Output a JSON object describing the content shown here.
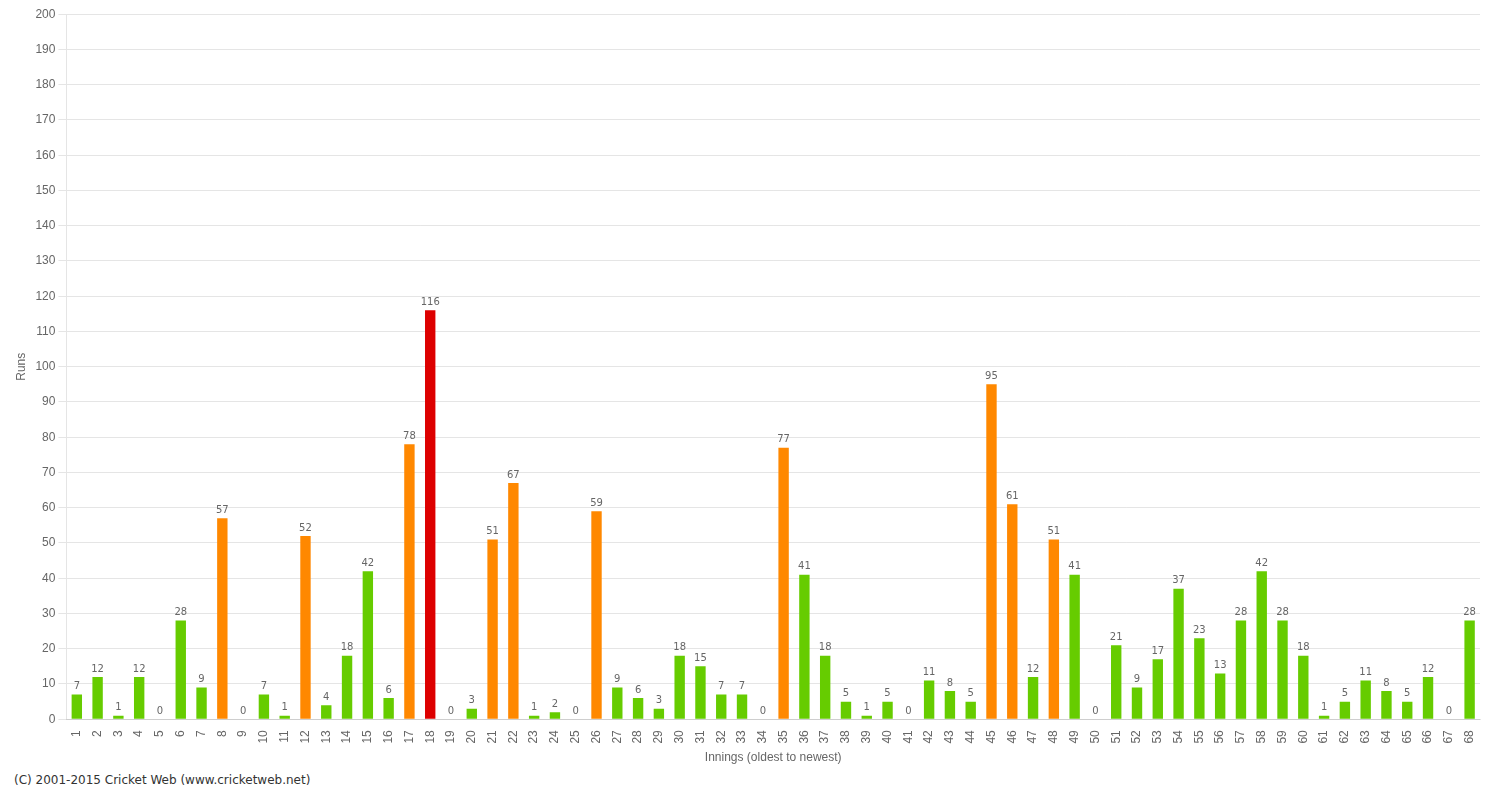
{
  "chart_data": {
    "type": "bar",
    "xlabel": "Innings (oldest to newest)",
    "ylabel": "Runs",
    "annotations": [
      "(C) 2001-2015 Cricket Web (www.cricketweb.net)"
    ],
    "categories": [
      "1",
      "2",
      "3",
      "4",
      "5",
      "6",
      "7",
      "8",
      "9",
      "10",
      "11",
      "12",
      "13",
      "14",
      "15",
      "16",
      "17",
      "18",
      "19",
      "20",
      "21",
      "22",
      "23",
      "24",
      "25",
      "26",
      "27",
      "28",
      "29",
      "30",
      "31",
      "32",
      "33",
      "34",
      "35",
      "36",
      "37",
      "38",
      "39",
      "40",
      "41",
      "42",
      "43",
      "44",
      "45",
      "46",
      "47",
      "48",
      "49",
      "50",
      "51",
      "52",
      "53",
      "54",
      "55",
      "56",
      "57",
      "58",
      "59",
      "60",
      "61",
      "62",
      "63",
      "64",
      "65",
      "66",
      "67",
      "68"
    ],
    "values": [
      7,
      12,
      1,
      12,
      0,
      28,
      9,
      57,
      0,
      7,
      1,
      52,
      4,
      18,
      42,
      6,
      78,
      116,
      0,
      3,
      51,
      67,
      1,
      2,
      0,
      59,
      9,
      6,
      3,
      18,
      15,
      7,
      7,
      0,
      77,
      41,
      18,
      5,
      1,
      5,
      0,
      11,
      8,
      5,
      95,
      61,
      12,
      51,
      41,
      0,
      21,
      9,
      17,
      37,
      23,
      13,
      28,
      42,
      28,
      18,
      1,
      5,
      11,
      8,
      5,
      12,
      0,
      28
    ],
    "colors": [
      "#66cc00",
      "#66cc00",
      "#66cc00",
      "#66cc00",
      "#66cc00",
      "#66cc00",
      "#66cc00",
      "#ff8800",
      "#66cc00",
      "#66cc00",
      "#66cc00",
      "#ff8800",
      "#66cc00",
      "#66cc00",
      "#66cc00",
      "#66cc00",
      "#ff8800",
      "#dd0000",
      "#66cc00",
      "#66cc00",
      "#ff8800",
      "#ff8800",
      "#66cc00",
      "#66cc00",
      "#66cc00",
      "#ff8800",
      "#66cc00",
      "#66cc00",
      "#66cc00",
      "#66cc00",
      "#66cc00",
      "#66cc00",
      "#66cc00",
      "#66cc00",
      "#ff8800",
      "#66cc00",
      "#66cc00",
      "#66cc00",
      "#66cc00",
      "#66cc00",
      "#66cc00",
      "#66cc00",
      "#66cc00",
      "#66cc00",
      "#ff8800",
      "#ff8800",
      "#66cc00",
      "#ff8800",
      "#66cc00",
      "#66cc00",
      "#66cc00",
      "#66cc00",
      "#66cc00",
      "#66cc00",
      "#66cc00",
      "#66cc00",
      "#66cc00",
      "#66cc00",
      "#66cc00",
      "#66cc00",
      "#66cc00",
      "#66cc00",
      "#66cc00",
      "#66cc00",
      "#66cc00",
      "#66cc00",
      "#66cc00",
      "#66cc00"
    ],
    "ylim": [
      0,
      200
    ],
    "yticks": [
      0,
      10,
      20,
      30,
      40,
      50,
      60,
      70,
      80,
      90,
      100,
      110,
      120,
      130,
      140,
      150,
      160,
      170,
      180,
      190,
      200
    ],
    "grid": true,
    "data_labels": true
  }
}
